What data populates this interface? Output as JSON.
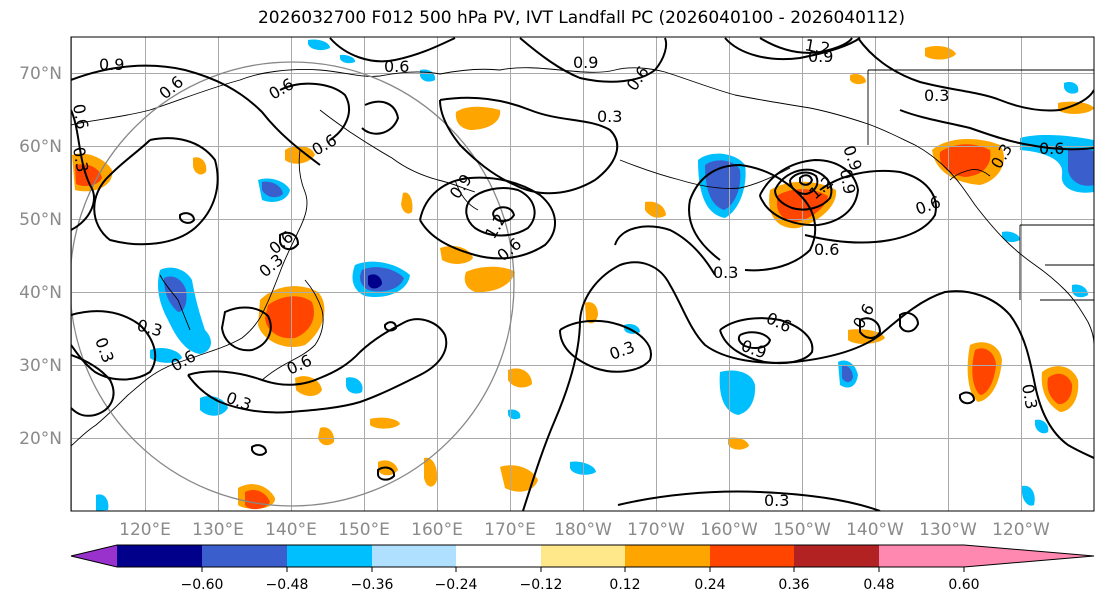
{
  "title": "2026032700 F012 500 hPa PV, IVT Landfall PC (2026040100 - 2026040112)",
  "lat_labels": [
    "70°N",
    "60°N",
    "50°N",
    "40°N",
    "30°N",
    "20°N"
  ],
  "lon_labels": [
    "120°E",
    "130°E",
    "140°E",
    "150°E",
    "160°E",
    "170°E",
    "180°W",
    "170°W",
    "160°W",
    "150°W",
    "140°W",
    "130°W",
    "120°W"
  ],
  "colorbar": {
    "colors": [
      "#9932CC",
      "#00008B",
      "#3A5FCD",
      "#00BFFF",
      "#B0E0FF",
      "#FFFFFF",
      "#FFE88A",
      "#FFA500",
      "#FF4500",
      "#B22222",
      "#FF88B0"
    ],
    "tick_labels": [
      "−0.60",
      "−0.48",
      "−0.36",
      "−0.24",
      "−0.12",
      "0.12",
      "0.24",
      "0.36",
      "0.48",
      "0.60"
    ]
  },
  "contour_labels": [
    "0.9",
    "0.6",
    "0.6",
    "0.6",
    "0.3",
    "0.9",
    "0.6",
    "0.6",
    "1.2",
    "0.9",
    "0.3",
    "0.6",
    "0.3",
    "0.9",
    "1.2",
    "0.6",
    "0.9",
    "1.2",
    "0.6",
    "0.3",
    "0.6",
    "0.3",
    "0.6",
    "0.9",
    "0.3",
    "0.3",
    "0.6",
    "0.3",
    "0.6",
    "0.3",
    "0.3",
    "0.6",
    "0.6",
    "0.3",
    "0.6",
    "0.9",
    "0.3"
  ]
}
